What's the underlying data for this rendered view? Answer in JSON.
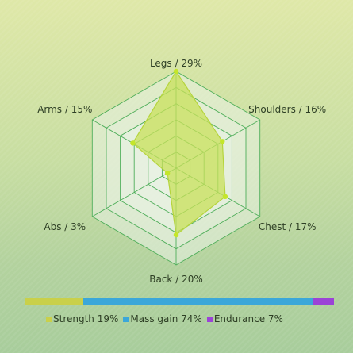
{
  "chart_data": [
    {
      "type": "radar",
      "axes": [
        {
          "name": "Legs",
          "value": 29
        },
        {
          "name": "Shoulders",
          "value": 16
        },
        {
          "name": "Chest",
          "value": 17
        },
        {
          "name": "Back",
          "value": 20
        },
        {
          "name": "Abs",
          "value": 3
        },
        {
          "name": "Arms",
          "value": 15
        }
      ],
      "axis_labels": [
        "Legs / 29%",
        "Shoulders / 16%",
        "Chest / 17%",
        "Back / 20%",
        "Abs / 3%",
        "Arms / 15%"
      ],
      "unit": "%",
      "range": [
        0,
        29
      ],
      "rings": 6,
      "grid": true,
      "colors": {
        "fill": "#c8e05a",
        "stroke": "#b5d43c",
        "point": "#c4e62a",
        "grid": "#4fae5a",
        "grid_fill": "#eaf3e6"
      }
    },
    {
      "type": "stacked-bar",
      "orientation": "horizontal",
      "series": [
        {
          "name": "Strength",
          "value": 19,
          "color": "#c9d04a"
        },
        {
          "name": "Mass gain",
          "value": 74,
          "color": "#3ba7d9"
        },
        {
          "name": "Endurance",
          "value": 7,
          "color": "#9b44d6"
        }
      ],
      "legend_labels": [
        "Strength 19%",
        "Mass gain 74%",
        "Endurance 7%"
      ],
      "legend": "bottom"
    }
  ]
}
